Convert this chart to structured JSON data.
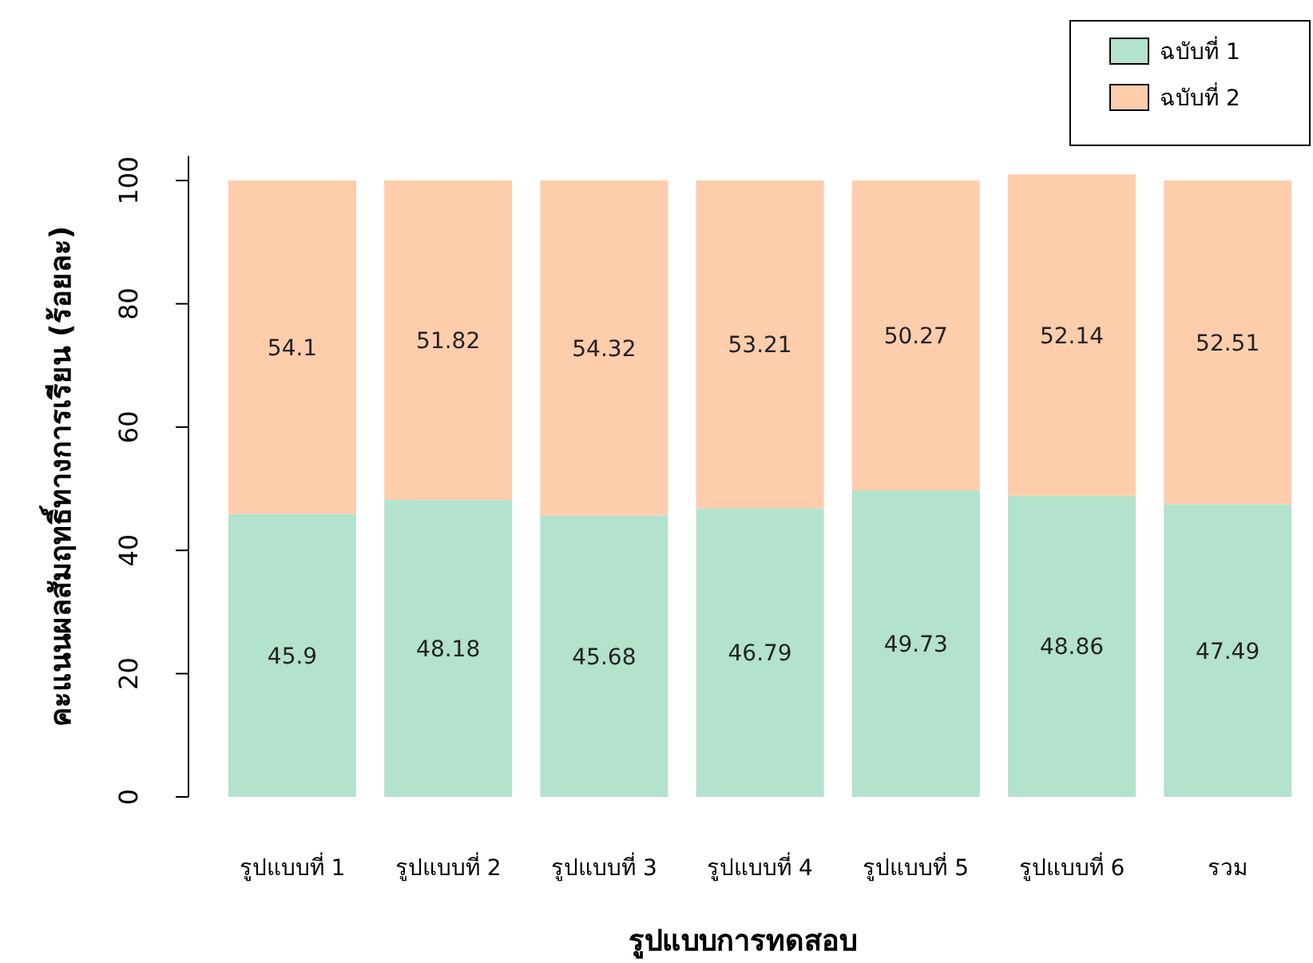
{
  "chart_data": {
    "type": "bar",
    "stacked": true,
    "xlabel": "รูปแบบการทดสอบ",
    "ylabel": "คะแนนผลสัมฤทธิ์ทางการเรียน (ร้อยละ)",
    "categories": [
      "รูปแบบที่ 1",
      "รูปแบบที่ 2",
      "รูปแบบที่ 3",
      "รูปแบบที่ 4",
      "รูปแบบที่ 5",
      "รูปแบบที่ 6",
      "รวม"
    ],
    "series": [
      {
        "name": "ฉบับที่ 1",
        "color": "#b3e2cd",
        "values": [
          45.9,
          48.18,
          45.68,
          46.79,
          49.73,
          48.86,
          47.49
        ]
      },
      {
        "name": "ฉบับที่ 2",
        "color": "#fdcdac",
        "values": [
          54.1,
          51.82,
          54.32,
          53.21,
          50.27,
          52.14,
          52.51
        ]
      }
    ],
    "ylim": [
      0,
      104
    ],
    "yticks": [
      0,
      20,
      40,
      60,
      80,
      100
    ],
    "grid": false,
    "legend": "top right",
    "data_labels": true
  }
}
